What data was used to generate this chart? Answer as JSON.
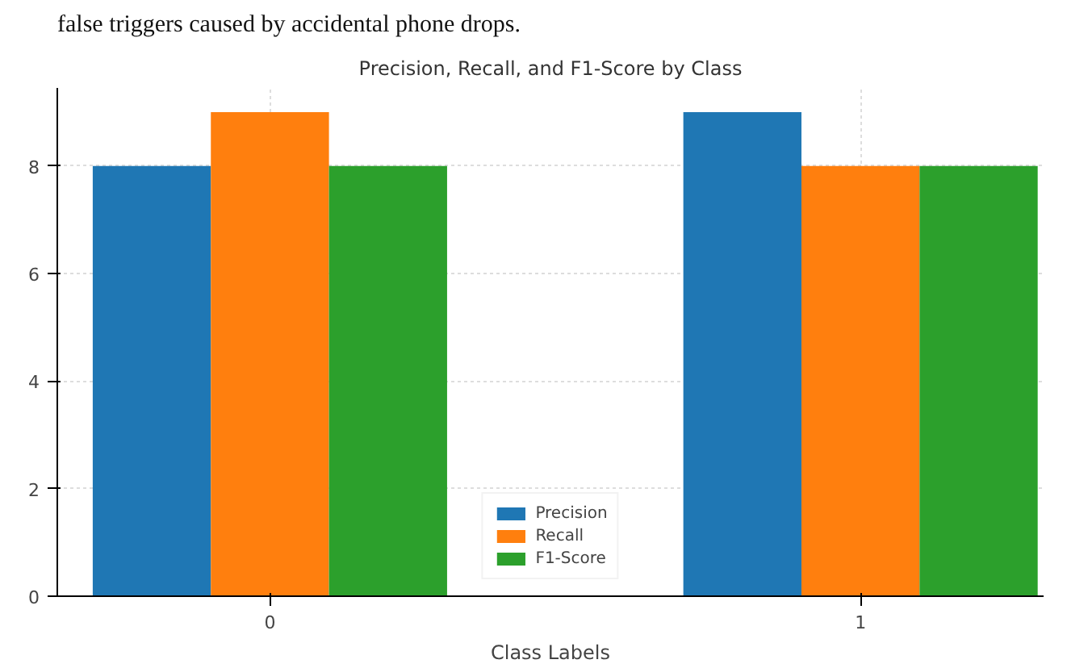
{
  "chart_data": {
    "type": "bar",
    "title": "Precision, Recall, and F1-Score by Class",
    "xlabel": "Class Labels",
    "annotations": [
      "false triggers caused by accidental phone drops."
    ],
    "categories": [
      "0",
      "1"
    ],
    "series": [
      {
        "name": "Precision",
        "color": "#1f77b4",
        "values": [
          8,
          9
        ]
      },
      {
        "name": "Recall",
        "color": "#ff7f0e",
        "values": [
          9,
          8
        ]
      },
      {
        "name": "F1-Score",
        "color": "#2ca02c",
        "values": [
          8,
          8
        ]
      }
    ],
    "ylim": [
      0,
      9.45
    ],
    "yticks": [
      0,
      2,
      4,
      6,
      8
    ],
    "grid": true,
    "legend": "bottom"
  }
}
